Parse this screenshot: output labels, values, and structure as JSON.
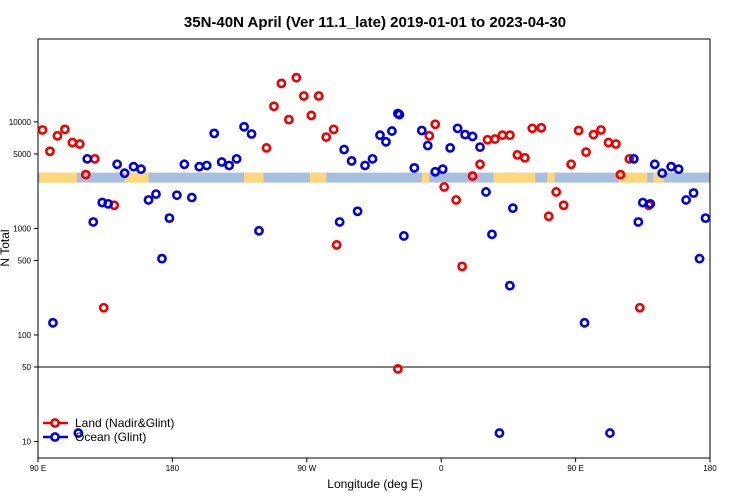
{
  "chart_data": {
    "type": "scatter",
    "title": "35N-40N April (Ver 11.1_late)   2019-01-01 to 2023-04-30",
    "xlabel": "Longitude (deg E)",
    "ylabel": "N Total",
    "x_unit": "degrees longitude, 90E to 180 then -180 to 180 (continuous scale 90..540)",
    "xlim": [
      90,
      540
    ],
    "ylim": [
      7,
      60000
    ],
    "y_scale": "log",
    "y_break_at": 50,
    "x_ticks": [
      {
        "x": 90,
        "label": "90 E"
      },
      {
        "x": 180,
        "label": "180"
      },
      {
        "x": 270,
        "label": "90 W"
      },
      {
        "x": 360,
        "label": "0"
      },
      {
        "x": 450,
        "label": "90 E"
      },
      {
        "x": 540,
        "label": "180"
      }
    ],
    "y_ticks": [
      {
        "y": 10,
        "label": "10"
      },
      {
        "y": 50,
        "label": "50"
      },
      {
        "y": 100,
        "label": "100"
      },
      {
        "y": 500,
        "label": "500"
      },
      {
        "y": 1000,
        "label": "1000"
      },
      {
        "y": 5000,
        "label": "5000"
      },
      {
        "y": 10000,
        "label": "10000"
      }
    ],
    "land_band": {
      "y": 3000,
      "land_color": "#fdd77a",
      "ocean_color": "#a9bfe0",
      "land_ranges": [
        [
          91,
          116
        ],
        [
          148,
          164
        ],
        [
          228,
          241
        ],
        [
          272,
          283
        ],
        [
          347,
          352
        ],
        [
          395,
          423
        ],
        [
          431,
          436
        ],
        [
          479,
          498
        ],
        [
          502,
          509
        ]
      ]
    },
    "series": [
      {
        "name": "Land (Nadir&Glint)",
        "color": "#ee0000",
        "points": [
          {
            "x": 93,
            "y": 8400
          },
          {
            "x": 98,
            "y": 5300
          },
          {
            "x": 103,
            "y": 7400
          },
          {
            "x": 108,
            "y": 8500
          },
          {
            "x": 113,
            "y": 6400
          },
          {
            "x": 118,
            "y": 6200
          },
          {
            "x": 122,
            "y": 3200
          },
          {
            "x": 128,
            "y": 4500
          },
          {
            "x": 134,
            "y": 180
          },
          {
            "x": 141,
            "y": 1650
          },
          {
            "x": 243,
            "y": 5700
          },
          {
            "x": 248,
            "y": 14000
          },
          {
            "x": 253,
            "y": 23000
          },
          {
            "x": 258,
            "y": 10500
          },
          {
            "x": 263,
            "y": 26000
          },
          {
            "x": 268,
            "y": 17500
          },
          {
            "x": 273,
            "y": 11500
          },
          {
            "x": 278,
            "y": 17500
          },
          {
            "x": 283,
            "y": 7200
          },
          {
            "x": 288,
            "y": 8500
          },
          {
            "x": 290,
            "y": 700
          },
          {
            "x": 331,
            "y": 48
          },
          {
            "x": 352,
            "y": 7400
          },
          {
            "x": 356,
            "y": 9500
          },
          {
            "x": 362,
            "y": 2450
          },
          {
            "x": 370,
            "y": 1850
          },
          {
            "x": 374,
            "y": 440
          },
          {
            "x": 381,
            "y": 3100
          },
          {
            "x": 386,
            "y": 4000
          },
          {
            "x": 391,
            "y": 6800
          },
          {
            "x": 396,
            "y": 6900
          },
          {
            "x": 401,
            "y": 7500
          },
          {
            "x": 406,
            "y": 7500
          },
          {
            "x": 411,
            "y": 4900
          },
          {
            "x": 416,
            "y": 4600
          },
          {
            "x": 421,
            "y": 8700
          },
          {
            "x": 427,
            "y": 8800
          },
          {
            "x": 432,
            "y": 1300
          },
          {
            "x": 437,
            "y": 2200
          },
          {
            "x": 442,
            "y": 1650
          },
          {
            "x": 447,
            "y": 4000
          },
          {
            "x": 452,
            "y": 8300
          },
          {
            "x": 457,
            "y": 5200
          },
          {
            "x": 462,
            "y": 7600
          },
          {
            "x": 467,
            "y": 8400
          },
          {
            "x": 472,
            "y": 6400
          },
          {
            "x": 477,
            "y": 6200
          },
          {
            "x": 480,
            "y": 3200
          },
          {
            "x": 486,
            "y": 4500
          },
          {
            "x": 493,
            "y": 180
          },
          {
            "x": 499,
            "y": 1650
          }
        ]
      },
      {
        "name": "Ocean (Glint)",
        "color": "#0000dd",
        "points": [
          {
            "x": 100,
            "y": 130
          },
          {
            "x": 117,
            "y": 12
          },
          {
            "x": 123,
            "y": 4500
          },
          {
            "x": 127,
            "y": 1150
          },
          {
            "x": 133,
            "y": 1750
          },
          {
            "x": 137,
            "y": 1700
          },
          {
            "x": 143,
            "y": 4000
          },
          {
            "x": 148,
            "y": 3300
          },
          {
            "x": 154,
            "y": 3800
          },
          {
            "x": 159,
            "y": 3600
          },
          {
            "x": 164,
            "y": 1850
          },
          {
            "x": 169,
            "y": 2100
          },
          {
            "x": 173,
            "y": 520
          },
          {
            "x": 178,
            "y": 1250
          },
          {
            "x": 183,
            "y": 2050
          },
          {
            "x": 188,
            "y": 4000
          },
          {
            "x": 193,
            "y": 1950
          },
          {
            "x": 198,
            "y": 3800
          },
          {
            "x": 203,
            "y": 3900
          },
          {
            "x": 208,
            "y": 7800
          },
          {
            "x": 213,
            "y": 4200
          },
          {
            "x": 218,
            "y": 3900
          },
          {
            "x": 223,
            "y": 4500
          },
          {
            "x": 228,
            "y": 9000
          },
          {
            "x": 233,
            "y": 7700
          },
          {
            "x": 238,
            "y": 950
          },
          {
            "x": 292,
            "y": 1150
          },
          {
            "x": 295,
            "y": 5500
          },
          {
            "x": 300,
            "y": 4300
          },
          {
            "x": 304,
            "y": 1450
          },
          {
            "x": 309,
            "y": 3900
          },
          {
            "x": 314,
            "y": 4500
          },
          {
            "x": 319,
            "y": 7500
          },
          {
            "x": 323,
            "y": 6500
          },
          {
            "x": 327,
            "y": 8200
          },
          {
            "x": 332,
            "y": 11700
          },
          {
            "x": 331,
            "y": 12000
          },
          {
            "x": 335,
            "y": 850
          },
          {
            "x": 342,
            "y": 3700
          },
          {
            "x": 347,
            "y": 8300
          },
          {
            "x": 351,
            "y": 6000
          },
          {
            "x": 356,
            "y": 3400
          },
          {
            "x": 361,
            "y": 3600
          },
          {
            "x": 366,
            "y": 5700
          },
          {
            "x": 371,
            "y": 8700
          },
          {
            "x": 376,
            "y": 7600
          },
          {
            "x": 381,
            "y": 7300
          },
          {
            "x": 386,
            "y": 5800
          },
          {
            "x": 390,
            "y": 2200
          },
          {
            "x": 394,
            "y": 880
          },
          {
            "x": 399,
            "y": 12
          },
          {
            "x": 406,
            "y": 290
          },
          {
            "x": 408,
            "y": 1550
          },
          {
            "x": 492,
            "y": 1150
          },
          {
            "x": 495,
            "y": 1750
          },
          {
            "x": 500,
            "y": 1700
          },
          {
            "x": 503,
            "y": 4000
          },
          {
            "x": 508,
            "y": 3300
          },
          {
            "x": 514,
            "y": 3800
          },
          {
            "x": 519,
            "y": 3600
          },
          {
            "x": 524,
            "y": 1850
          },
          {
            "x": 529,
            "y": 2150
          },
          {
            "x": 533,
            "y": 520
          },
          {
            "x": 537,
            "y": 1250
          },
          {
            "x": 456,
            "y": 130
          },
          {
            "x": 473,
            "y": 12
          },
          {
            "x": 489,
            "y": 4500
          }
        ]
      }
    ],
    "legend": [
      {
        "label": "Land (Nadir&Glint)",
        "color": "#ee0000"
      },
      {
        "label": "Ocean (Glint)",
        "color": "#0000dd"
      }
    ],
    "legend_position": "bottom-left"
  }
}
